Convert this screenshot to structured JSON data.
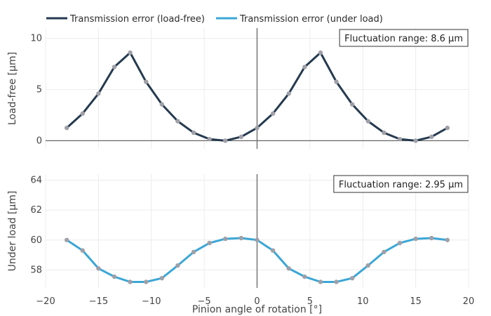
{
  "chart_data": {
    "type": "line",
    "xlabel": "Pinion angle of rotation [°]",
    "xlim": [
      -20,
      20
    ],
    "xticks": [
      -20,
      -15,
      -10,
      -5,
      0,
      5,
      10,
      15,
      20
    ],
    "xtick_labels": [
      "−20",
      "−15",
      "−10",
      "−5",
      "0",
      "5",
      "10",
      "15",
      "20"
    ],
    "x": [
      -18,
      -16.5,
      -15,
      -13.5,
      -12,
      -10.5,
      -9,
      -7.5,
      -6,
      -4.5,
      -3,
      -1.5,
      0,
      1.5,
      3,
      4.5,
      6,
      7.5,
      9,
      10.5,
      12,
      13.5,
      15,
      16.5,
      18
    ],
    "legend": [
      {
        "name": "Transmission error (load-free)",
        "color": "#253a4f"
      },
      {
        "name": "Transmission error (under load)",
        "color": "#3ba7d6"
      }
    ],
    "marker_color": "#a0a0a8",
    "panels": [
      {
        "series_name": "Transmission error (load-free)",
        "color": "#253a4f",
        "ylabel": "Load-free [µm]",
        "ylim": [
          -0.8,
          11
        ],
        "yticks": [
          0,
          5,
          10
        ],
        "annotation": "Fluctuation range: 8.6 µm",
        "values": [
          1.25,
          2.65,
          4.6,
          7.2,
          8.6,
          5.75,
          3.55,
          1.9,
          0.78,
          0.15,
          0.0,
          0.38,
          1.25,
          2.65,
          4.6,
          7.2,
          8.6,
          5.75,
          3.55,
          1.9,
          0.78,
          0.15,
          0.0,
          0.38,
          1.25
        ]
      },
      {
        "series_name": "Transmission error (under load)",
        "color": "#3ba7d6",
        "ylabel": "Under load [µm]",
        "ylim": [
          56.8,
          64.4
        ],
        "yticks": [
          58,
          60,
          62,
          64
        ],
        "annotation": "Fluctuation range: 2.95 µm",
        "values": [
          60.0,
          59.3,
          58.1,
          57.55,
          57.2,
          57.2,
          57.45,
          58.3,
          59.2,
          59.8,
          60.08,
          60.13,
          60.0,
          59.3,
          58.1,
          57.55,
          57.2,
          57.2,
          57.45,
          58.3,
          59.2,
          59.8,
          60.08,
          60.13,
          60.0
        ]
      }
    ]
  }
}
